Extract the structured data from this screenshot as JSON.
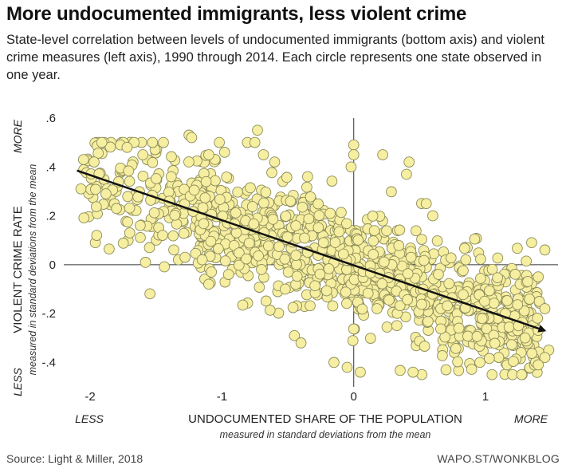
{
  "title": "More undocumented immigrants, less violent crime",
  "subtitle": "State-level correlation between levels of undocumented immigrants (bottom axis) and violent crime measures (left axis), 1990 through 2014. Each circle represents one state observed in one year.",
  "source": "Source: Light & Miller, 2018",
  "credit": "WAPO.ST/WONKBLOG",
  "chart_data": {
    "type": "scatter",
    "xlabel": "UNDOCUMENTED SHARE OF THE POPULATION",
    "xlabel_sub": "measured in standard deviations from the mean",
    "ylabel": "VIOLENT CRIME RATE",
    "ylabel_sub": "measured in standard deviations from the mean",
    "x_low": "LESS",
    "x_high": "MORE",
    "y_low": "LESS",
    "y_high": "MORE",
    "xlim": [
      -2.2,
      1.55
    ],
    "ylim": [
      -0.5,
      0.6
    ],
    "x_ticks": [
      -2,
      -1,
      0,
      1
    ],
    "x_tick_labels": [
      "-2",
      "-1",
      "0",
      "1"
    ],
    "y_ticks": [
      -0.4,
      -0.2,
      0,
      0.2,
      0.4,
      0.6
    ],
    "y_tick_labels": [
      "-.4",
      "-.2",
      "0",
      ".2",
      ".4",
      ".6"
    ],
    "grid": false,
    "zero_lines": true,
    "trend_line": {
      "x": [
        -2.1,
        1.45
      ],
      "y": [
        0.385,
        -0.27
      ]
    },
    "point_color": "#f6eea0",
    "point_stroke": "#8c8c5a",
    "point_count": 1200,
    "points": [
      [
        -2.05,
        0.43
      ],
      [
        -1.97,
        0.42
      ],
      [
        -2.07,
        0.31
      ],
      [
        -1.88,
        0.29
      ],
      [
        -1.95,
        0.12
      ],
      [
        -1.77,
        0.49
      ],
      [
        -1.72,
        0.48
      ],
      [
        -1.6,
        0.45
      ],
      [
        -1.8,
        0.23
      ],
      [
        -1.7,
        0.13
      ],
      [
        -1.62,
        0.16
      ],
      [
        -1.55,
        0.07
      ],
      [
        -1.45,
        0.12
      ],
      [
        -1.4,
        0.26
      ],
      [
        -1.25,
        0.53
      ],
      [
        -1.23,
        0.52
      ],
      [
        -1.12,
        0.34
      ],
      [
        -1.1,
        0.45
      ],
      [
        -0.98,
        0.46
      ],
      [
        -0.73,
        0.55
      ],
      [
        -0.75,
        0.5
      ],
      [
        -1.1,
        -0.08
      ],
      [
        -1.15,
        0.02
      ],
      [
        -1.08,
        -0.03
      ],
      [
        -0.45,
        -0.29
      ],
      [
        -0.15,
        -0.4
      ],
      [
        0.0,
        0.49
      ],
      [
        0.0,
        0.45
      ],
      [
        -0.02,
        0.4
      ],
      [
        0.22,
        0.45
      ],
      [
        0.42,
        0.42
      ],
      [
        0.4,
        0.37
      ],
      [
        0.6,
        0.2
      ],
      [
        1.35,
        0.09
      ],
      [
        1.45,
        0.06
      ],
      [
        1.4,
        -0.05
      ],
      [
        1.45,
        -0.18
      ],
      [
        1.48,
        -0.35
      ],
      [
        1.45,
        -0.38
      ],
      [
        1.4,
        -0.41
      ],
      [
        1.3,
        -0.3
      ],
      [
        1.05,
        -0.45
      ],
      [
        0.7,
        -0.43
      ],
      [
        0.45,
        -0.44
      ],
      [
        0.05,
        -0.44
      ],
      [
        -0.05,
        -0.42
      ],
      [
        -0.4,
        -0.32
      ],
      [
        -1.33,
        0.02
      ],
      [
        -1.28,
        0.03
      ],
      [
        -0.95,
        -0.04
      ],
      [
        -0.7,
        -0.02
      ],
      [
        -0.52,
        -0.1
      ],
      [
        -0.48,
        0.26
      ],
      [
        -0.6,
        0.42
      ],
      [
        -0.35,
        0.36
      ],
      [
        0.55,
        0.25
      ],
      [
        0.85,
        0.02
      ],
      [
        1.15,
        -0.2
      ],
      [
        1.25,
        -0.25
      ]
    ],
    "seed": 7
  }
}
